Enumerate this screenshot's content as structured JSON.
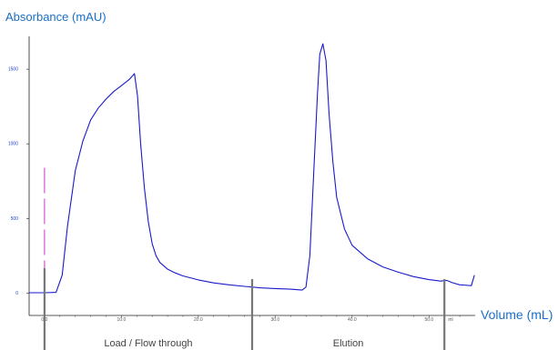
{
  "chart_data": {
    "type": "line",
    "ylabel": "Absorbance (mAU)",
    "xlabel": "Volume (mL)",
    "x_unit_label": "ml",
    "xlim": [
      -2,
      56
    ],
    "ylim": [
      -150,
      1720
    ],
    "x_ticks": [
      {
        "value": 0,
        "label": "0.0"
      },
      {
        "value": 10,
        "label": "10.0"
      },
      {
        "value": 20,
        "label": "20.0"
      },
      {
        "value": 30,
        "label": "30.0"
      },
      {
        "value": 40,
        "label": "40.0"
      },
      {
        "value": 50,
        "label": "50.0"
      }
    ],
    "y_ticks": [
      {
        "value": 0,
        "label": "0"
      },
      {
        "value": 500,
        "label": "500"
      },
      {
        "value": 1000,
        "label": "1000"
      },
      {
        "value": 1500,
        "label": "1500"
      }
    ],
    "series": [
      {
        "color": "#1a1acc",
        "x": [
          -2,
          0,
          1.5,
          2.3,
          3,
          4,
          5,
          6,
          7,
          8,
          9,
          10,
          11,
          11.7,
          12.1,
          12.5,
          13,
          13.5,
          14,
          14.5,
          15,
          16,
          17,
          18,
          20,
          22,
          24,
          26,
          28,
          30,
          32,
          33.5,
          34,
          34.5,
          35,
          35.5,
          35.8,
          36.2,
          36.6,
          37,
          37.5,
          38,
          39,
          40,
          42,
          44,
          46,
          48,
          50,
          51.5,
          52.3,
          53,
          54,
          55.5,
          55.9
        ],
        "y": [
          2,
          2,
          5,
          120,
          450,
          820,
          1020,
          1160,
          1240,
          1300,
          1350,
          1390,
          1430,
          1470,
          1320,
          1000,
          700,
          480,
          330,
          250,
          205,
          160,
          135,
          115,
          88,
          68,
          55,
          45,
          35,
          30,
          26,
          20,
          40,
          250,
          800,
          1340,
          1600,
          1670,
          1560,
          1200,
          880,
          640,
          430,
          320,
          230,
          175,
          140,
          110,
          90,
          80,
          85,
          70,
          55,
          50,
          120
        ]
      }
    ],
    "annotations": [
      {
        "type": "dashed-line",
        "x": 0,
        "y_range": [
          90,
          840
        ],
        "color": "#cc33cc"
      }
    ],
    "regions": [
      {
        "label": "Load / Flow through",
        "start": 0,
        "end": 27
      },
      {
        "label": "Elution",
        "start": 27,
        "end": 52
      }
    ]
  }
}
